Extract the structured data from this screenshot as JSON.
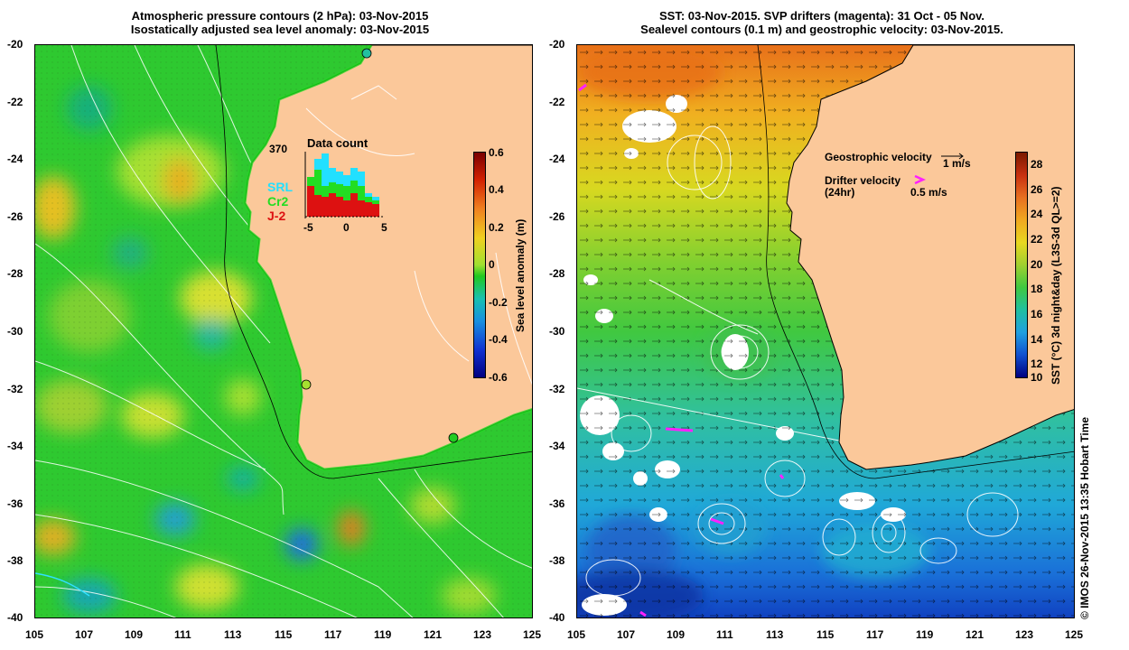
{
  "left_panel": {
    "title_line1": "Atmospheric pressure contours (2 hPa): 03-Nov-2015",
    "title_line2": "Isostatically adjusted sea level anomaly: 03-Nov-2015",
    "colorbar_label": "Sea level anomaly (m)",
    "colorbar_ticks": [
      "0.6",
      "0.4",
      "0.2",
      "0",
      "-0.2",
      "-0.4",
      "-0.6"
    ],
    "inset": {
      "title": "Data count",
      "count_label": "370",
      "x_ticks": [
        "-5",
        "0",
        "5"
      ],
      "legend": [
        {
          "label": "SRL",
          "color": "#22e0ff"
        },
        {
          "label": "Cr2",
          "color": "#22dd22"
        },
        {
          "label": "J-2",
          "color": "#dd1111"
        }
      ]
    }
  },
  "right_panel": {
    "title_line1": "SST: 03-Nov-2015. SVP drifters (magenta): 31 Oct - 05 Nov.",
    "title_line2": "Sealevel contours (0.1 m) and geostrophic velocity: 03-Nov-2015.",
    "colorbar_label": "SST (°C) 3d night&day (L3S-3d QL>=2)",
    "colorbar_ticks": [
      "28",
      "26",
      "24",
      "22",
      "20",
      "18",
      "16",
      "14",
      "12",
      "10"
    ],
    "legend_geo": "Geostrophic velocity",
    "legend_geo_scale": "1 m/s",
    "legend_drifter_line1": "Drifter velocity",
    "legend_drifter_line2": "(24hr)",
    "legend_drifter_scale": "0.5 m/s"
  },
  "axes": {
    "lat_ticks": [
      "-20",
      "-22",
      "-24",
      "-26",
      "-28",
      "-30",
      "-32",
      "-34",
      "-36",
      "-38",
      "-40"
    ],
    "lon_ticks": [
      "105",
      "107",
      "109",
      "111",
      "113",
      "115",
      "117",
      "119",
      "121",
      "123",
      "125"
    ]
  },
  "credit": "© IMOS 26-Nov-2015 13:35 Hobart Time",
  "colors": {
    "land": "#fbc89a",
    "ocean_green": "#33cc33",
    "sst_warm": "#e8701a",
    "sst_cool": "#1a8ad8"
  }
}
